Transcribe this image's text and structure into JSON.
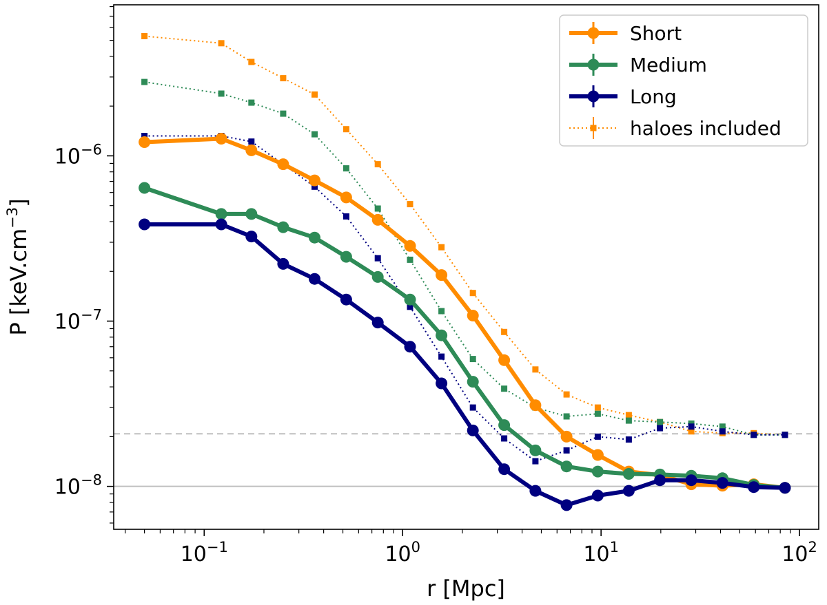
{
  "chart_data": {
    "type": "line",
    "title": "",
    "xlabel": "r [Mpc]",
    "ylabel_main": "P [keV.cm",
    "ylabel_sup": "−3",
    "ylabel_close": "]",
    "xscale": "log",
    "yscale": "log",
    "xlim": [
      0.035,
      125
    ],
    "ylim": [
      5.5e-09,
      8.2e-06
    ],
    "x_ticks": [
      {
        "value": 0.1,
        "base": "10",
        "exp": "−1"
      },
      {
        "value": 1,
        "base": "10",
        "exp": "0"
      },
      {
        "value": 10,
        "base": "10",
        "exp": "1"
      },
      {
        "value": 100,
        "base": "10",
        "exp": "2"
      }
    ],
    "y_ticks": [
      {
        "value": 1e-08,
        "base": "10",
        "exp": "−8"
      },
      {
        "value": 1e-07,
        "base": "10",
        "exp": "−7"
      },
      {
        "value": 1e-06,
        "base": "10",
        "exp": "−6"
      }
    ],
    "reference_lines": [
      {
        "name": "solid-reference-line",
        "y": 1e-08,
        "style": "solid",
        "color": "#bfbfbf"
      },
      {
        "name": "dashed-reference-line",
        "y": 2.08e-08,
        "style": "dashed",
        "color": "#bfbfbf"
      }
    ],
    "x": [
      0.05,
      0.122,
      0.173,
      0.25,
      0.36,
      0.52,
      0.75,
      1.09,
      1.57,
      2.26,
      3.25,
      4.67,
      6.7,
      9.63,
      13.8,
      19.8,
      28.5,
      40.9,
      58.8,
      84.5
    ],
    "series": [
      {
        "name": "Short",
        "style": "solid",
        "color": "#ff8c00",
        "values": [
          1.21e-06,
          1.27e-06,
          1.08e-06,
          8.9e-07,
          7.1e-07,
          5.6e-07,
          4.1e-07,
          2.85e-07,
          1.9e-07,
          1.08e-07,
          5.8e-08,
          3.1e-08,
          2e-08,
          1.55e-08,
          1.23e-08,
          1.17e-08,
          1.03e-08,
          1.01e-08,
          1.03e-08,
          9.8e-09
        ]
      },
      {
        "name": "Medium",
        "style": "solid",
        "color": "#2e8b57",
        "values": [
          6.4e-07,
          4.45e-07,
          4.45e-07,
          3.7e-07,
          3.2e-07,
          2.45e-07,
          1.85e-07,
          1.35e-07,
          8.2e-08,
          4.3e-08,
          2.35e-08,
          1.65e-08,
          1.32e-08,
          1.23e-08,
          1.19e-08,
          1.18e-08,
          1.16e-08,
          1.12e-08,
          1.02e-08,
          9.8e-09
        ]
      },
      {
        "name": "Long",
        "style": "solid",
        "color": "#000080",
        "values": [
          3.85e-07,
          3.85e-07,
          3.25e-07,
          2.22e-07,
          1.8e-07,
          1.35e-07,
          9.8e-08,
          7e-08,
          4.2e-08,
          2.18e-08,
          1.27e-08,
          9.4e-09,
          7.7e-09,
          8.8e-09,
          9.4e-09,
          1.09e-08,
          1.09e-08,
          1.05e-08,
          9.9e-09,
          9.8e-09
        ]
      },
      {
        "name": "Short (haloes included)",
        "style": "dotted",
        "color": "#ff8c00",
        "values": [
          5.3e-06,
          4.8e-06,
          3.7e-06,
          2.95e-06,
          2.35e-06,
          1.45e-06,
          8.9e-07,
          5.1e-07,
          2.8e-07,
          1.48e-07,
          8.6e-08,
          5.1e-08,
          3.6e-08,
          3e-08,
          2.7e-08,
          2.45e-08,
          2.15e-08,
          2.1e-08,
          2.1e-08,
          2.05e-08
        ]
      },
      {
        "name": "Medium (haloes included)",
        "style": "dotted",
        "color": "#2e8b57",
        "values": [
          2.8e-06,
          2.38e-06,
          2.1e-06,
          1.8e-06,
          1.35e-06,
          8.4e-07,
          4.8e-07,
          2.35e-07,
          1.15e-07,
          5.9e-08,
          3.9e-08,
          3e-08,
          2.65e-08,
          2.75e-08,
          2.5e-08,
          2.45e-08,
          2.4e-08,
          2.3e-08,
          2.05e-08,
          2.05e-08
        ]
      },
      {
        "name": "Long (haloes included)",
        "style": "dotted",
        "color": "#000080",
        "values": [
          1.32e-06,
          1.32e-06,
          1.22e-06,
          8.9e-07,
          6.5e-07,
          4.3e-07,
          2.4e-07,
          1.22e-07,
          6.1e-08,
          3e-08,
          1.95e-08,
          1.42e-08,
          1.65e-08,
          2e-08,
          1.92e-08,
          2.25e-08,
          2.3e-08,
          2.15e-08,
          2.05e-08,
          2.05e-08
        ]
      }
    ],
    "legend": {
      "position": "top-right",
      "entries": [
        {
          "label": "Short",
          "color": "#ff8c00",
          "style": "solid"
        },
        {
          "label": "Medium",
          "color": "#2e8b57",
          "style": "solid"
        },
        {
          "label": "Long",
          "color": "#000080",
          "style": "solid"
        },
        {
          "label": "haloes included",
          "color": "#ff8c00",
          "style": "dotted"
        }
      ]
    }
  }
}
